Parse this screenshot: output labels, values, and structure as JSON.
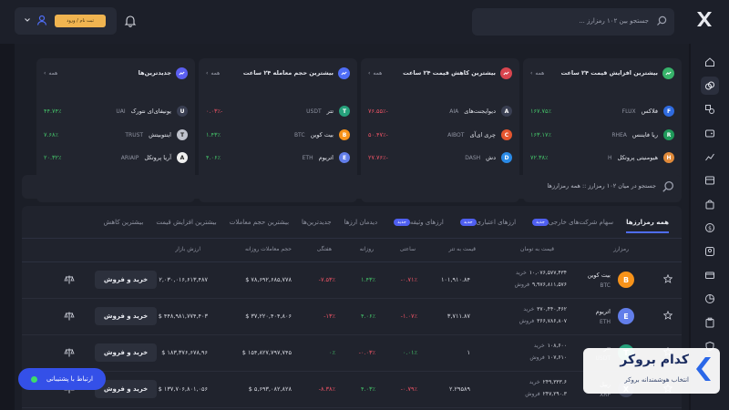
{
  "topbar": {
    "search_placeholder": "جستجو بین ۱۰۲ رمزارز ...",
    "register_label": "ثبت نام / ورود",
    "accent": "#f0b450"
  },
  "cards": [
    {
      "title": "بیشترین افزایش قیمت ۲۴ ساعت",
      "all_label": "همه",
      "badge_color": "#37b36a",
      "rows": [
        {
          "name": "فلاکس",
          "symbol": "FLUX",
          "change": "۱۶۷.۷۵٪",
          "dir": "up",
          "color": "#2f6be0",
          "glyph": "F"
        },
        {
          "name": "ریا فایننس",
          "symbol": "RHEA",
          "change": "۱۶۳.۱۷٪",
          "dir": "up",
          "color": "#1f9a5a",
          "glyph": "R"
        },
        {
          "name": "هیومنیتی پروتکل",
          "symbol": "H",
          "change": "۷۲.۳۸٪",
          "dir": "up",
          "color": "#e08a3a",
          "glyph": "H"
        }
      ]
    },
    {
      "title": "بیشترین کاهش قیمت ۲۴ ساعت",
      "all_label": "همه",
      "badge_color": "#d9454f",
      "rows": [
        {
          "name": "دیوایجنت‌های",
          "symbol": "AIA",
          "change": "-۷۶.۵۵٪",
          "dir": "down",
          "color": "#3a3f52",
          "glyph": "A"
        },
        {
          "name": "چری ای‌آی",
          "symbol": "AIBOT",
          "change": "-۵۰.۴۷٪",
          "dir": "down",
          "color": "#e5562f",
          "glyph": "C"
        },
        {
          "name": "دش",
          "symbol": "DASH",
          "change": "-۲۷.۷۶٪",
          "dir": "down",
          "color": "#2a8ae6",
          "glyph": "D"
        }
      ]
    },
    {
      "title": "بیشترین حجم معامله ۲۴ ساعت",
      "all_label": "همه",
      "badge_color": "#4f6df5",
      "rows": [
        {
          "name": "تتر",
          "symbol": "USDT",
          "change": "-۰.۰۳٪",
          "dir": "down",
          "color": "#26a17b",
          "glyph": "T"
        },
        {
          "name": "بیت کوین",
          "symbol": "BTC",
          "change": "۱.۴۳٪",
          "dir": "up",
          "color": "#f7931a",
          "glyph": "B"
        },
        {
          "name": "اتریوم",
          "symbol": "ETH",
          "change": "۴.۰۶٪",
          "dir": "up",
          "color": "#627eea",
          "glyph": "E"
        }
      ]
    },
    {
      "title": "جدیدترین‌ها",
      "all_label": "همه",
      "badge_color": "#5b5ff0",
      "rows": [
        {
          "name": "یونیفای‌ای نتورک",
          "symbol": "UAI",
          "change": "۴۴.۷۴٪",
          "dir": "up",
          "color": "#3a3f52",
          "glyph": "U"
        },
        {
          "name": "اینتوبیتش",
          "symbol": "TRUST",
          "change": "۷.۶۸٪",
          "dir": "up",
          "color": "#bfc2cc",
          "glyph": "T"
        },
        {
          "name": "آریا پروتکل",
          "symbol": "ARIAIP",
          "change": "۲۰.۳۲٪",
          "dir": "up",
          "color": "#f0f0f0",
          "glyph": "A"
        }
      ]
    }
  ],
  "search2": {
    "text": "جستجو در میان ۱۰۲ رمزارز :: همه رمزارزها"
  },
  "tabs": [
    {
      "label": "همه رمزارزها",
      "new": ""
    },
    {
      "label": "سهام شرکت‌های خارجی",
      "new": "جدید"
    },
    {
      "label": "ارزهای اعتباری",
      "new": "جدید"
    },
    {
      "label": "ارزهای وثیقه",
      "new": "جدید"
    },
    {
      "label": "دیدمان ارزها",
      "new": ""
    },
    {
      "label": "جدیدترین‌ها",
      "new": ""
    },
    {
      "label": "بیشترین حجم معاملات",
      "new": ""
    },
    {
      "label": "بیشترین افزایش قیمت",
      "new": ""
    },
    {
      "label": "بیشترین کاهش",
      "new": ""
    }
  ],
  "table": {
    "headers": {
      "coin": "رمزارز",
      "price_toman": "قیمت به تومان",
      "price_tether": "قیمت به تتر",
      "hourly": "ساعتی",
      "daily": "روزانه",
      "weekly": "هفتگی",
      "daily_volume": "حجم معاملات روزانه",
      "market_value": "ارزش بازار"
    },
    "buy_label": "خرید",
    "sell_label": "فروش",
    "trade_label": "خرید و فروش",
    "rows": [
      {
        "name": "بیت کوین",
        "symbol": "BTC",
        "color": "#f7931a",
        "glyph": "B",
        "buy": "۱۰,۰۷۶,۵۷۷,۴۳۴",
        "sell": "۹,۹۷۶,۸۱۱,۵۷۶",
        "tether": "۱۰۱,۹۱۰.۸۴",
        "hourly": "-۰.۷۱٪",
        "hourly_dir": "down",
        "daily": "۱.۴۳٪",
        "daily_dir": "up",
        "weekly": "-۷.۵۳٪",
        "weekly_dir": "down",
        "volume": "$ ۷۸,۶۹۲,۶۸۵,۷۷۸",
        "mcap": "$ ۲,۰۳۰,۰۱۶,۶۱۳,۴۸۷"
      },
      {
        "name": "اتریوم",
        "symbol": "ETH",
        "color": "#627eea",
        "glyph": "E",
        "buy": "۳۷۰,۴۴۰,۴۶۲",
        "sell": "۳۶۶,۷۸۶,۸۰۷",
        "tether": "۳,۷۱۱.۸۷",
        "hourly": "-۱.۰۷٪",
        "hourly_dir": "down",
        "daily": "۴.۰۶٪",
        "daily_dir": "up",
        "weekly": "-۱۳٪",
        "weekly_dir": "down",
        "volume": "$ ۳۷,۲۲۰,۴۰۴,۸۰۶",
        "mcap": "$ ۴۴۸,۹۸۱,۷۷۴,۴۰۳"
      },
      {
        "name": "تتر",
        "symbol": "USDT",
        "color": "#26a17b",
        "glyph": "T",
        "buy": "۱۰۸,۶۰۰",
        "sell": "۱۰۷,۶۱۰",
        "tether": "۱",
        "hourly": "۰.۰۱٪",
        "hourly_dir": "up",
        "daily": "-۰.۰۳٪",
        "daily_dir": "down",
        "weekly": "۰٪",
        "weekly_dir": "up",
        "volume": "$ ۱۵۴,۸۲۷,۷۹۷,۷۴۵",
        "mcap": "$ ۱۸۳,۳۷۶,۶۷۸,۹۶"
      },
      {
        "name": "ریپل",
        "symbol": "XRP",
        "color": "#3a3f52",
        "glyph": "X",
        "buy": "۲۴۹,۳۳۳.۶",
        "sell": "۲۴۷,۲۹۰.۳",
        "tether": "۲.۲۹۵۸۹",
        "hourly": "-۰.۷۹٪",
        "hourly_dir": "down",
        "daily": "۴.۰۳٪",
        "daily_dir": "up",
        "weekly": "-۸.۳۸٪",
        "weekly_dir": "down",
        "volume": "$ ۵,۶۹۳,۰۸۲,۸۲۸",
        "mcap": "$ ۱۳۷,۷۰۶,۸۰۱,۰۵۶"
      }
    ]
  },
  "support": {
    "label": "ارتباط با پشتیبانی"
  },
  "watermark": {
    "title": "کدام بروکر",
    "subtitle": "انتخاب هوشمندانه بروکر"
  }
}
